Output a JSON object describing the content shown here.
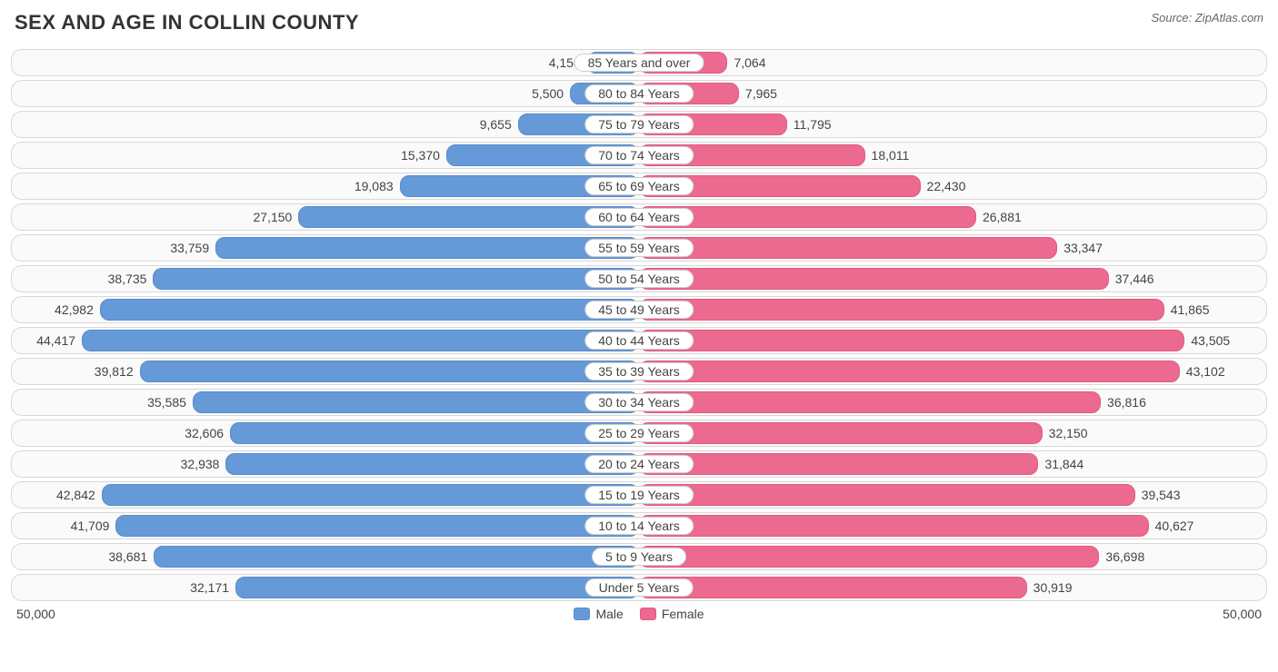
{
  "header": {
    "title": "SEX AND AGE IN COLLIN COUNTY",
    "source": "Source: ZipAtlas.com"
  },
  "chart": {
    "type": "population-pyramid",
    "max_value": 50000,
    "axis_left_label": "50,000",
    "axis_right_label": "50,000",
    "male_color": "#6699d8",
    "female_color": "#ec6a8f",
    "track_bg": "#fafafa",
    "track_border": "#d8d8d8",
    "rows": [
      {
        "label": "85 Years and over",
        "male": 4150,
        "male_fmt": "4,150",
        "female": 7064,
        "female_fmt": "7,064"
      },
      {
        "label": "80 to 84 Years",
        "male": 5500,
        "male_fmt": "5,500",
        "female": 7965,
        "female_fmt": "7,965"
      },
      {
        "label": "75 to 79 Years",
        "male": 9655,
        "male_fmt": "9,655",
        "female": 11795,
        "female_fmt": "11,795"
      },
      {
        "label": "70 to 74 Years",
        "male": 15370,
        "male_fmt": "15,370",
        "female": 18011,
        "female_fmt": "18,011"
      },
      {
        "label": "65 to 69 Years",
        "male": 19083,
        "male_fmt": "19,083",
        "female": 22430,
        "female_fmt": "22,430"
      },
      {
        "label": "60 to 64 Years",
        "male": 27150,
        "male_fmt": "27,150",
        "female": 26881,
        "female_fmt": "26,881"
      },
      {
        "label": "55 to 59 Years",
        "male": 33759,
        "male_fmt": "33,759",
        "female": 33347,
        "female_fmt": "33,347"
      },
      {
        "label": "50 to 54 Years",
        "male": 38735,
        "male_fmt": "38,735",
        "female": 37446,
        "female_fmt": "37,446"
      },
      {
        "label": "45 to 49 Years",
        "male": 42982,
        "male_fmt": "42,982",
        "female": 41865,
        "female_fmt": "41,865"
      },
      {
        "label": "40 to 44 Years",
        "male": 44417,
        "male_fmt": "44,417",
        "female": 43505,
        "female_fmt": "43,505"
      },
      {
        "label": "35 to 39 Years",
        "male": 39812,
        "male_fmt": "39,812",
        "female": 43102,
        "female_fmt": "43,102"
      },
      {
        "label": "30 to 34 Years",
        "male": 35585,
        "male_fmt": "35,585",
        "female": 36816,
        "female_fmt": "36,816"
      },
      {
        "label": "25 to 29 Years",
        "male": 32606,
        "male_fmt": "32,606",
        "female": 32150,
        "female_fmt": "32,150"
      },
      {
        "label": "20 to 24 Years",
        "male": 32938,
        "male_fmt": "32,938",
        "female": 31844,
        "female_fmt": "31,844"
      },
      {
        "label": "15 to 19 Years",
        "male": 42842,
        "male_fmt": "42,842",
        "female": 39543,
        "female_fmt": "39,543"
      },
      {
        "label": "10 to 14 Years",
        "male": 41709,
        "male_fmt": "41,709",
        "female": 40627,
        "female_fmt": "40,627"
      },
      {
        "label": "5 to 9 Years",
        "male": 38681,
        "male_fmt": "38,681",
        "female": 36698,
        "female_fmt": "36,698"
      },
      {
        "label": "Under 5 Years",
        "male": 32171,
        "male_fmt": "32,171",
        "female": 30919,
        "female_fmt": "30,919"
      }
    ]
  },
  "legend": {
    "male": "Male",
    "female": "Female"
  }
}
